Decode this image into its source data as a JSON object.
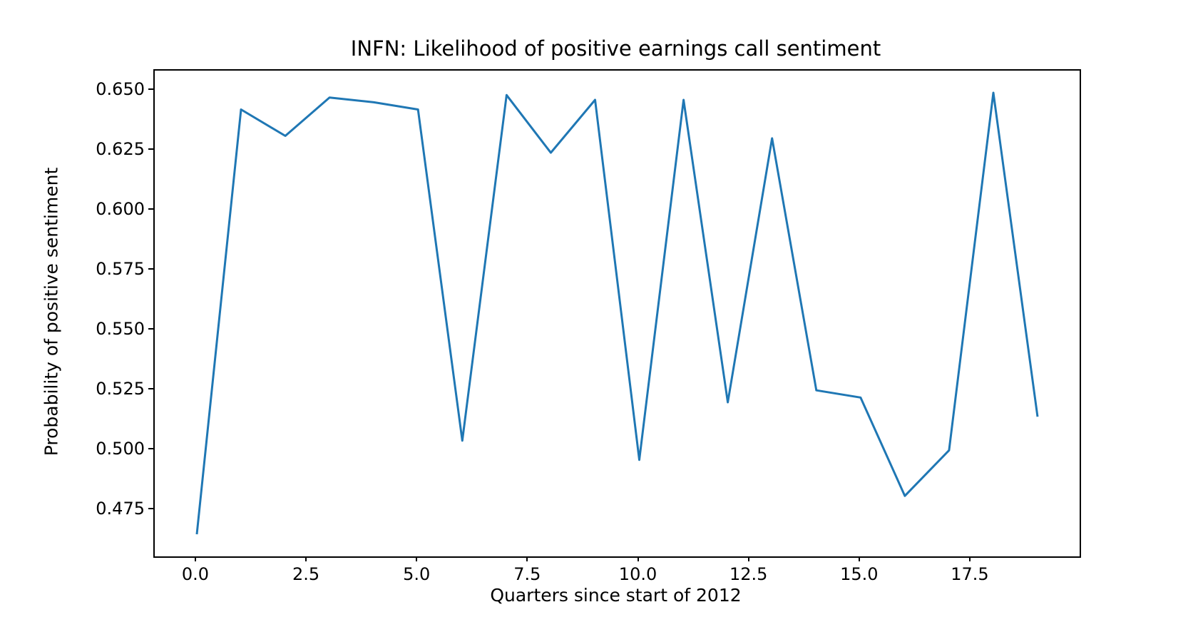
{
  "figure": {
    "background": "#ffffff"
  },
  "chart_data": {
    "type": "line",
    "title": "INFN: Likelihood of positive earnings call sentiment",
    "xlabel": "Quarters since start of 2012",
    "ylabel": "Probability of positive sentiment",
    "x": [
      0,
      1,
      2,
      3,
      4,
      5,
      6,
      7,
      8,
      9,
      10,
      11,
      12,
      13,
      14,
      15,
      16,
      17,
      18,
      19
    ],
    "values": [
      0.465,
      0.642,
      0.631,
      0.647,
      0.645,
      0.642,
      0.504,
      0.648,
      0.624,
      0.646,
      0.496,
      0.646,
      0.52,
      0.63,
      0.525,
      0.522,
      0.481,
      0.5,
      0.649,
      0.514
    ],
    "xlim": [
      -0.95,
      19.95
    ],
    "ylim": [
      0.4558,
      0.6582
    ],
    "xticks": [
      {
        "v": 0.0,
        "label": "0.0"
      },
      {
        "v": 2.5,
        "label": "2.5"
      },
      {
        "v": 5.0,
        "label": "5.0"
      },
      {
        "v": 7.5,
        "label": "7.5"
      },
      {
        "v": 10.0,
        "label": "10.0"
      },
      {
        "v": 12.5,
        "label": "12.5"
      },
      {
        "v": 15.0,
        "label": "15.0"
      },
      {
        "v": 17.5,
        "label": "17.5"
      }
    ],
    "yticks": [
      {
        "v": 0.475,
        "label": "0.475"
      },
      {
        "v": 0.5,
        "label": "0.500"
      },
      {
        "v": 0.525,
        "label": "0.525"
      },
      {
        "v": 0.55,
        "label": "0.550"
      },
      {
        "v": 0.575,
        "label": "0.575"
      },
      {
        "v": 0.6,
        "label": "0.600"
      },
      {
        "v": 0.625,
        "label": "0.625"
      },
      {
        "v": 0.65,
        "label": "0.650"
      }
    ],
    "line_color": "#1f77b4",
    "grid": false,
    "legend_position": "none"
  }
}
